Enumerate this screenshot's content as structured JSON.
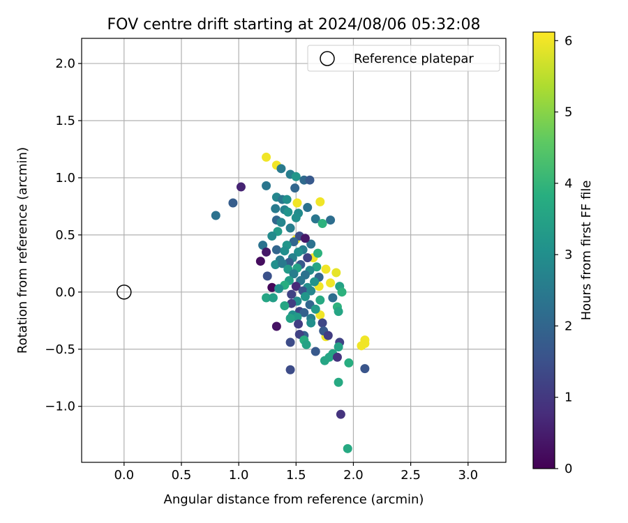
{
  "chart_data": {
    "type": "scatter",
    "title": "FOV centre drift starting at 2024/08/06 05:32:08",
    "xlabel": "Angular distance from reference (arcmin)",
    "ylabel": "Rotation from reference (arcmin)",
    "xlim": [
      -0.37,
      3.33
    ],
    "ylim": [
      -1.49,
      2.22
    ],
    "xticks": [
      0.0,
      0.5,
      1.0,
      1.5,
      2.0,
      2.5,
      3.0
    ],
    "xtick_labels": [
      "0.0",
      "0.5",
      "1.0",
      "1.5",
      "2.0",
      "2.5",
      "3.0"
    ],
    "yticks": [
      -1.0,
      -0.5,
      0.0,
      0.5,
      1.0,
      1.5,
      2.0
    ],
    "ytick_labels": [
      "−1.0",
      "−0.5",
      "0.0",
      "0.5",
      "1.0",
      "1.5",
      "2.0"
    ],
    "grid": true,
    "legend": {
      "position": "top-right",
      "entries": [
        {
          "label": "Reference platepar",
          "marker": "open-circle"
        }
      ]
    },
    "reference_point": {
      "x": 0.0,
      "y": 0.0
    },
    "colorbar": {
      "label": "Hours from first FF file",
      "colormap": "viridis",
      "range": [
        0,
        6.12
      ],
      "ticks": [
        0,
        1,
        2,
        3,
        4,
        5,
        6
      ],
      "tick_labels": [
        "0",
        "1",
        "2",
        "3",
        "4",
        "5",
        "6"
      ]
    },
    "points": [
      {
        "x": 1.24,
        "y": 1.18,
        "c": 6.0
      },
      {
        "x": 1.33,
        "y": 1.11,
        "c": 6.0
      },
      {
        "x": 1.71,
        "y": 0.79,
        "c": 6.0
      },
      {
        "x": 1.51,
        "y": 0.78,
        "c": 6.0
      },
      {
        "x": 1.5,
        "y": 0.46,
        "c": 6.0
      },
      {
        "x": 1.65,
        "y": 0.3,
        "c": 6.0
      },
      {
        "x": 1.76,
        "y": 0.2,
        "c": 6.0
      },
      {
        "x": 1.85,
        "y": 0.17,
        "c": 5.9
      },
      {
        "x": 1.8,
        "y": 0.08,
        "c": 6.0
      },
      {
        "x": 1.7,
        "y": 0.05,
        "c": 6.0
      },
      {
        "x": 1.71,
        "y": -0.2,
        "c": 6.0
      },
      {
        "x": 1.76,
        "y": -0.39,
        "c": 6.0
      },
      {
        "x": 2.1,
        "y": -0.42,
        "c": 6.0
      },
      {
        "x": 2.1,
        "y": -0.45,
        "c": 6.0
      },
      {
        "x": 2.07,
        "y": -0.47,
        "c": 6.0
      },
      {
        "x": 1.02,
        "y": 0.92,
        "c": 0.6
      },
      {
        "x": 0.95,
        "y": 0.78,
        "c": 1.8
      },
      {
        "x": 0.8,
        "y": 0.67,
        "c": 2.3
      },
      {
        "x": 1.37,
        "y": 1.08,
        "c": 2.5
      },
      {
        "x": 1.45,
        "y": 1.03,
        "c": 2.6
      },
      {
        "x": 1.5,
        "y": 1.01,
        "c": 3.2
      },
      {
        "x": 1.57,
        "y": 0.98,
        "c": 2.1
      },
      {
        "x": 1.62,
        "y": 0.98,
        "c": 1.7
      },
      {
        "x": 1.24,
        "y": 0.93,
        "c": 2.4
      },
      {
        "x": 1.49,
        "y": 0.91,
        "c": 2.0
      },
      {
        "x": 1.33,
        "y": 0.83,
        "c": 2.8
      },
      {
        "x": 1.38,
        "y": 0.81,
        "c": 2.4
      },
      {
        "x": 1.42,
        "y": 0.81,
        "c": 3.0
      },
      {
        "x": 1.32,
        "y": 0.73,
        "c": 2.5
      },
      {
        "x": 1.4,
        "y": 0.72,
        "c": 2.7
      },
      {
        "x": 1.43,
        "y": 0.7,
        "c": 3.1
      },
      {
        "x": 1.6,
        "y": 0.74,
        "c": 2.3
      },
      {
        "x": 1.52,
        "y": 0.69,
        "c": 2.9
      },
      {
        "x": 1.5,
        "y": 0.65,
        "c": 3.0
      },
      {
        "x": 1.67,
        "y": 0.64,
        "c": 2.4
      },
      {
        "x": 1.8,
        "y": 0.63,
        "c": 2.2
      },
      {
        "x": 1.33,
        "y": 0.63,
        "c": 2.0
      },
      {
        "x": 1.37,
        "y": 0.61,
        "c": 2.8
      },
      {
        "x": 1.73,
        "y": 0.6,
        "c": 3.9
      },
      {
        "x": 1.45,
        "y": 0.56,
        "c": 2.6
      },
      {
        "x": 1.34,
        "y": 0.53,
        "c": 3.3
      },
      {
        "x": 1.29,
        "y": 0.49,
        "c": 2.9
      },
      {
        "x": 1.53,
        "y": 0.49,
        "c": 1.4
      },
      {
        "x": 1.48,
        "y": 0.44,
        "c": 2.0
      },
      {
        "x": 1.63,
        "y": 0.42,
        "c": 2.3
      },
      {
        "x": 1.42,
        "y": 0.41,
        "c": 3.2
      },
      {
        "x": 1.58,
        "y": 0.47,
        "c": 0.4
      },
      {
        "x": 1.21,
        "y": 0.41,
        "c": 2.3
      },
      {
        "x": 1.33,
        "y": 0.37,
        "c": 2.0
      },
      {
        "x": 1.4,
        "y": 0.36,
        "c": 3.0
      },
      {
        "x": 1.56,
        "y": 0.37,
        "c": 2.6
      },
      {
        "x": 1.52,
        "y": 0.35,
        "c": 3.0
      },
      {
        "x": 1.69,
        "y": 0.34,
        "c": 3.9
      },
      {
        "x": 1.24,
        "y": 0.35,
        "c": 0.4
      },
      {
        "x": 1.6,
        "y": 0.3,
        "c": 1.2
      },
      {
        "x": 1.36,
        "y": 0.28,
        "c": 2.5
      },
      {
        "x": 1.47,
        "y": 0.3,
        "c": 2.7
      },
      {
        "x": 1.19,
        "y": 0.27,
        "c": 0.2
      },
      {
        "x": 1.44,
        "y": 0.26,
        "c": 1.8
      },
      {
        "x": 1.54,
        "y": 0.24,
        "c": 1.7
      },
      {
        "x": 1.32,
        "y": 0.24,
        "c": 3.0
      },
      {
        "x": 1.38,
        "y": 0.25,
        "c": 2.5
      },
      {
        "x": 1.68,
        "y": 0.22,
        "c": 3.6
      },
      {
        "x": 1.51,
        "y": 0.21,
        "c": 3.5
      },
      {
        "x": 1.62,
        "y": 0.19,
        "c": 2.9
      },
      {
        "x": 1.43,
        "y": 0.2,
        "c": 3.3
      },
      {
        "x": 1.25,
        "y": 0.14,
        "c": 1.5
      },
      {
        "x": 1.48,
        "y": 0.16,
        "c": 2.6
      },
      {
        "x": 1.58,
        "y": 0.15,
        "c": 2.3
      },
      {
        "x": 1.7,
        "y": 0.13,
        "c": 2.0
      },
      {
        "x": 1.44,
        "y": 0.1,
        "c": 3.4
      },
      {
        "x": 1.54,
        "y": 0.1,
        "c": 2.4
      },
      {
        "x": 1.66,
        "y": 0.09,
        "c": 3.1
      },
      {
        "x": 1.4,
        "y": 0.06,
        "c": 3.8
      },
      {
        "x": 1.5,
        "y": 0.05,
        "c": 0.7
      },
      {
        "x": 1.6,
        "y": 0.04,
        "c": 3.0
      },
      {
        "x": 1.29,
        "y": 0.04,
        "c": 0.1
      },
      {
        "x": 1.35,
        "y": 0.03,
        "c": 3.0
      },
      {
        "x": 1.56,
        "y": 0.01,
        "c": 1.6
      },
      {
        "x": 1.63,
        "y": 0.01,
        "c": 2.8
      },
      {
        "x": 1.88,
        "y": 0.05,
        "c": 3.5
      },
      {
        "x": 1.9,
        "y": 0.0,
        "c": 3.9
      },
      {
        "x": 1.46,
        "y": -0.02,
        "c": 1.2
      },
      {
        "x": 1.58,
        "y": -0.04,
        "c": 3.2
      },
      {
        "x": 1.82,
        "y": -0.05,
        "c": 2.2
      },
      {
        "x": 1.24,
        "y": -0.05,
        "c": 3.6
      },
      {
        "x": 1.3,
        "y": -0.05,
        "c": 3.4
      },
      {
        "x": 1.71,
        "y": -0.07,
        "c": 3.7
      },
      {
        "x": 1.51,
        "y": -0.08,
        "c": 2.9
      },
      {
        "x": 1.46,
        "y": -0.1,
        "c": 1.1
      },
      {
        "x": 1.62,
        "y": -0.11,
        "c": 2.0
      },
      {
        "x": 1.4,
        "y": -0.12,
        "c": 3.6
      },
      {
        "x": 1.86,
        "y": -0.13,
        "c": 3.9
      },
      {
        "x": 1.67,
        "y": -0.15,
        "c": 3.3
      },
      {
        "x": 1.87,
        "y": -0.17,
        "c": 3.6
      },
      {
        "x": 1.53,
        "y": -0.17,
        "c": 1.2
      },
      {
        "x": 1.57,
        "y": -0.18,
        "c": 1.9
      },
      {
        "x": 1.47,
        "y": -0.2,
        "c": 3.0
      },
      {
        "x": 1.51,
        "y": -0.22,
        "c": 3.3
      },
      {
        "x": 1.63,
        "y": -0.23,
        "c": 2.6
      },
      {
        "x": 1.45,
        "y": -0.23,
        "c": 3.5
      },
      {
        "x": 1.63,
        "y": -0.27,
        "c": 3.0
      },
      {
        "x": 1.73,
        "y": -0.27,
        "c": 1.3
      },
      {
        "x": 1.52,
        "y": -0.28,
        "c": 1.1
      },
      {
        "x": 1.33,
        "y": -0.3,
        "c": 0.3
      },
      {
        "x": 1.74,
        "y": -0.34,
        "c": 1.7
      },
      {
        "x": 1.78,
        "y": -0.38,
        "c": 1.1
      },
      {
        "x": 1.57,
        "y": -0.38,
        "c": 1.9
      },
      {
        "x": 1.53,
        "y": -0.37,
        "c": 1.2
      },
      {
        "x": 1.57,
        "y": -0.42,
        "c": 3.8
      },
      {
        "x": 1.88,
        "y": -0.44,
        "c": 1.2
      },
      {
        "x": 1.45,
        "y": -0.44,
        "c": 1.4
      },
      {
        "x": 1.59,
        "y": -0.46,
        "c": 3.5
      },
      {
        "x": 1.87,
        "y": -0.48,
        "c": 3.5
      },
      {
        "x": 1.67,
        "y": -0.52,
        "c": 1.7
      },
      {
        "x": 1.82,
        "y": -0.54,
        "c": 3.6
      },
      {
        "x": 1.79,
        "y": -0.57,
        "c": 3.6
      },
      {
        "x": 1.86,
        "y": -0.57,
        "c": 0.9
      },
      {
        "x": 1.75,
        "y": -0.6,
        "c": 3.6
      },
      {
        "x": 1.96,
        "y": -0.62,
        "c": 3.8
      },
      {
        "x": 1.45,
        "y": -0.68,
        "c": 1.4
      },
      {
        "x": 2.1,
        "y": -0.67,
        "c": 1.6
      },
      {
        "x": 1.87,
        "y": -0.79,
        "c": 3.7
      },
      {
        "x": 1.89,
        "y": -1.07,
        "c": 0.9
      },
      {
        "x": 1.95,
        "y": -1.37,
        "c": 3.7
      }
    ]
  }
}
